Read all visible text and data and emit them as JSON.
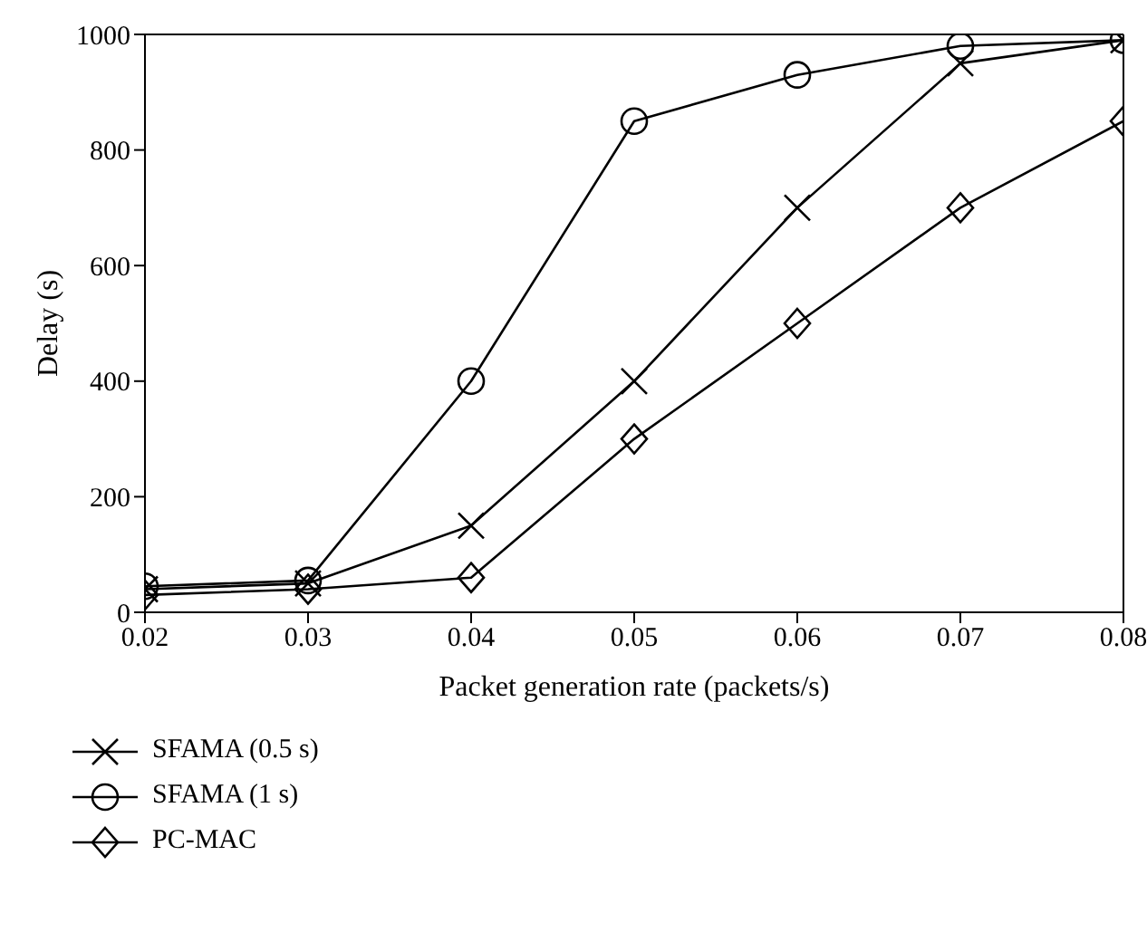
{
  "chart_data": {
    "type": "line",
    "xlabel": "Packet generation rate (packets/s)",
    "ylabel": "Delay (s)",
    "x": [
      0.02,
      0.03,
      0.04,
      0.05,
      0.06,
      0.07,
      0.08
    ],
    "xlim": [
      0.02,
      0.08
    ],
    "xticks": [
      0.02,
      0.03,
      0.04,
      0.05,
      0.06,
      0.07,
      0.08
    ],
    "ylim": [
      0,
      1000
    ],
    "yticks": [
      0,
      200,
      400,
      600,
      800,
      1000
    ],
    "grid": false,
    "legend": "bottom left",
    "line_style": "solid",
    "series": [
      {
        "name": "SFAMA (0.5 s)",
        "color": "#000000",
        "marker": "cross",
        "values": [
          40,
          50,
          150,
          400,
          700,
          950,
          990
        ]
      },
      {
        "name": "SFAMA (1 s)",
        "color": "#000000",
        "marker": "circle",
        "values": [
          45,
          55,
          400,
          850,
          930,
          980,
          990
        ]
      },
      {
        "name": "PC-MAC",
        "color": "#000000",
        "marker": "diamond",
        "values": [
          30,
          40,
          60,
          300,
          500,
          700,
          850
        ]
      }
    ]
  }
}
